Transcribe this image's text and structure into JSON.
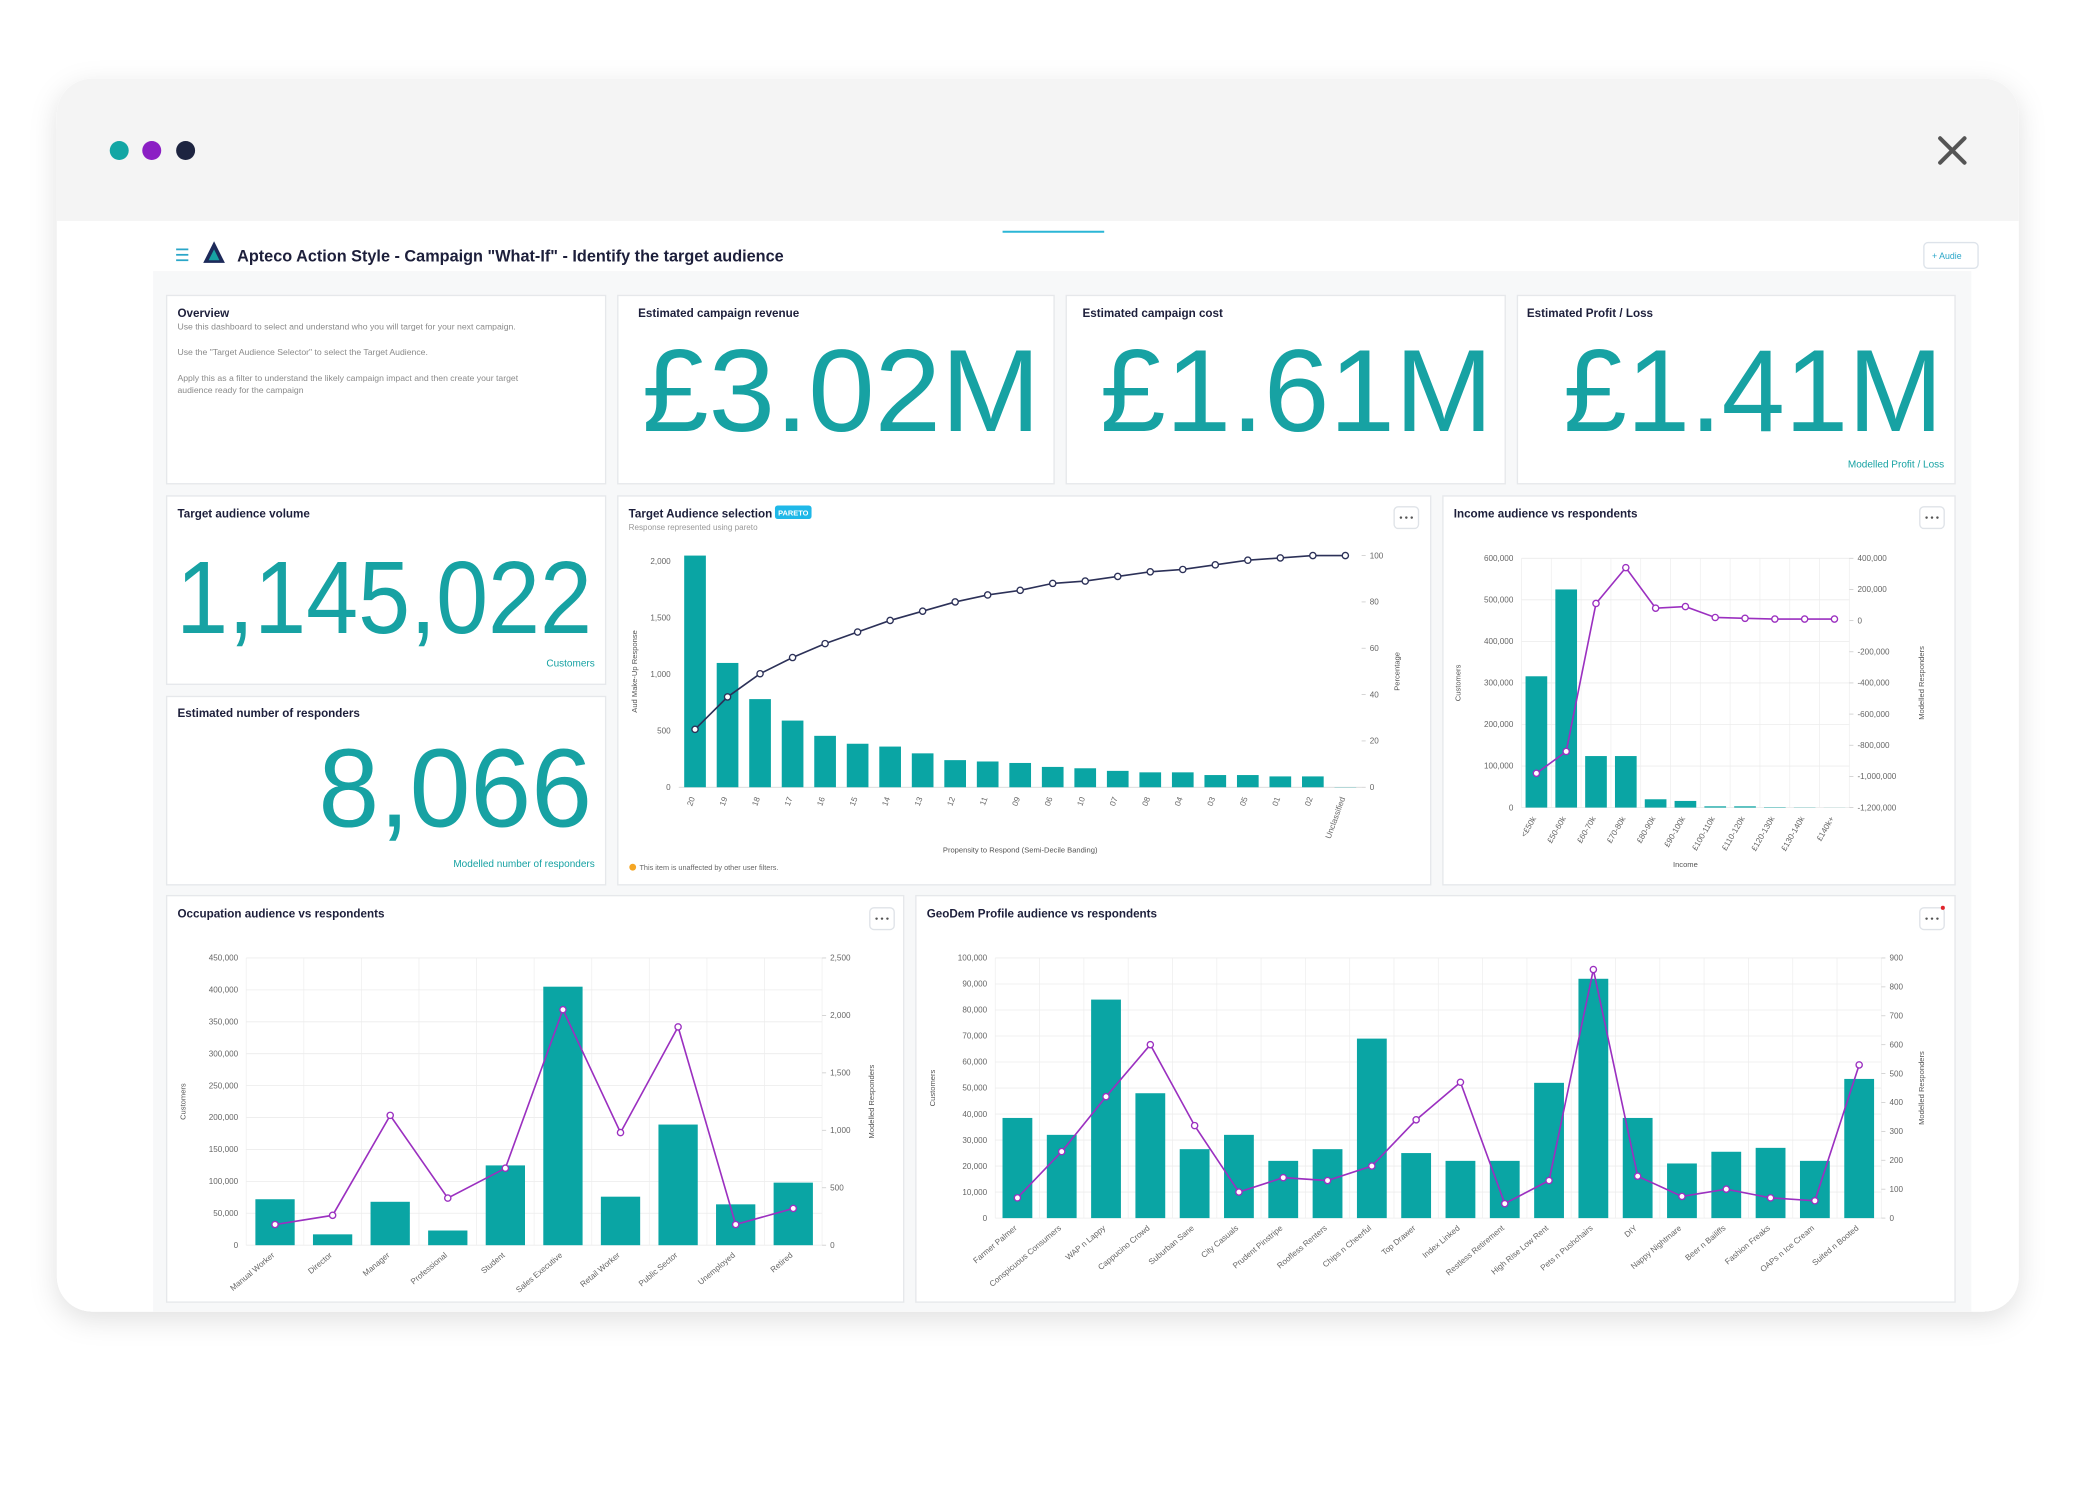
{
  "header": {
    "title": "Apteco Action Style - Campaign \"What-If\" - Identify the target audience",
    "button": "+ Audie"
  },
  "overview": {
    "title": "Overview",
    "lines": [
      "Use this dashboard to select and understand who you will target for your next campaign.",
      "Use the \"Target Audience Selector\" to select the Target Audience.",
      "Apply this as a filter to understand the likely campaign impact and then create your target",
      "audience ready for the campaign"
    ]
  },
  "kpis": [
    {
      "title": "Estimated campaign revenue",
      "value": "£3.02M"
    },
    {
      "title": "Estimated campaign cost",
      "value": "£1.61M"
    },
    {
      "title": "Estimated Profit / Loss",
      "value": "£1.41M",
      "caption": "Modelled Profit / Loss"
    },
    {
      "title": "Target audience volume",
      "value": "1,145,022",
      "caption": "Customers"
    },
    {
      "title": "Estimated number of responders",
      "value": "8,066",
      "caption": "Modelled number of responders"
    }
  ],
  "chart_data": [
    {
      "type": "combo",
      "title": "Target Audience selection",
      "badge": "PARETO",
      "subtitle": "Response represented using pareto",
      "note": "This item is unaffected by other user filters.",
      "categories": [
        "20",
        "19",
        "18",
        "17",
        "16",
        "15",
        "14",
        "13",
        "12",
        "11",
        "09",
        "06",
        "10",
        "07",
        "08",
        "04",
        "03",
        "05",
        "01",
        "02",
        "Unclassified"
      ],
      "series": [
        {
          "type": "bar",
          "color": "#0aa5a4",
          "values": [
            2050,
            1100,
            780,
            590,
            455,
            385,
            360,
            300,
            240,
            228,
            215,
            180,
            168,
            145,
            132,
            132,
            108,
            108,
            96,
            96,
            2
          ]
        },
        {
          "type": "line",
          "axis": "y2",
          "color": "#2c3158",
          "values": [
            25,
            39,
            49,
            56,
            62,
            67,
            72,
            76,
            80,
            83,
            85,
            88,
            89,
            91,
            93,
            94,
            96,
            98,
            99,
            100,
            100
          ]
        }
      ],
      "ylim": [
        0,
        2050
      ],
      "yticks": [
        0,
        500,
        {
          "value": 1000,
          "label": "1,000"
        },
        {
          "value": 1500,
          "label": "1,500"
        },
        {
          "value": 2000,
          "label": "2,000"
        }
      ],
      "y2lim": [
        0,
        100
      ],
      "y2ticks": [
        0,
        20,
        40,
        60,
        80,
        100
      ],
      "xlabel": "Propensity to Respond (Semi-Decile Banding)",
      "ylabel": "Aud Make-Up Response",
      "y2label": "Percentage",
      "grid": false
    },
    {
      "type": "combo",
      "title": "Income audience vs respondents",
      "categories": [
        "<£50k",
        "£50-60k",
        "£60-70k",
        "£70-80k",
        "£80-90k",
        "£90-100k",
        "£100-110k",
        "£110-120k",
        "£120-130k",
        "£130-140k",
        "£140k+"
      ],
      "series": [
        {
          "type": "bar",
          "color": "#0aa5a4",
          "values": [
            316000,
            525000,
            124000,
            124000,
            20000,
            16000,
            3000,
            3000,
            1000,
            500,
            200
          ]
        },
        {
          "type": "line",
          "axis": "y2",
          "color": "#9b30c0",
          "values": [
            -980000,
            -840000,
            110000,
            340000,
            80000,
            90000,
            20000,
            15000,
            10000,
            10000,
            10000
          ]
        }
      ],
      "ylim": [
        0,
        600000
      ],
      "yticks": [
        0,
        {
          "value": 100000,
          "label": "100,000"
        },
        {
          "value": 200000,
          "label": "200,000"
        },
        {
          "value": 300000,
          "label": "300,000"
        },
        {
          "value": 400000,
          "label": "400,000"
        },
        {
          "value": 500000,
          "label": "500,000"
        },
        {
          "value": 600000,
          "label": "600,000"
        }
      ],
      "y2lim": [
        -1200000,
        400000
      ],
      "y2ticks": [
        {
          "value": 400000,
          "label": "400,000"
        },
        {
          "value": 200000,
          "label": "200,000"
        },
        0,
        {
          "value": -200000,
          "label": "-200,000"
        },
        {
          "value": -400000,
          "label": "-400,000"
        },
        {
          "value": -600000,
          "label": "-600,000"
        },
        {
          "value": -800000,
          "label": "-800,000"
        },
        {
          "value": -1000000,
          "label": "-1,000,000"
        },
        {
          "value": -1200000,
          "label": "-1,200,000"
        }
      ],
      "xlabel": "Income",
      "ylabel": "Customers",
      "y2label": "Modelled Responders",
      "grid": true
    },
    {
      "type": "combo",
      "title": "Occupation audience vs respondents",
      "categories": [
        "Manual Worker",
        "Director",
        "Manager",
        "Professional",
        "Student",
        "Sales Executive",
        "Retail Worker",
        "Public Sector",
        "Unemployed",
        "Retired"
      ],
      "series": [
        {
          "type": "bar",
          "color": "#0aa5a4",
          "values": [
            72000,
            17000,
            68000,
            23000,
            125000,
            405000,
            76000,
            189000,
            64000,
            98000
          ]
        },
        {
          "type": "line",
          "axis": "y2",
          "color": "#9b30c0",
          "values": [
            180,
            260,
            1130,
            410,
            670,
            2050,
            980,
            1900,
            180,
            320
          ]
        }
      ],
      "ylim": [
        0,
        450000
      ],
      "yticks": [
        0,
        {
          "value": 50000,
          "label": "50,000"
        },
        {
          "value": 100000,
          "label": "100,000"
        },
        {
          "value": 150000,
          "label": "150,000"
        },
        {
          "value": 200000,
          "label": "200,000"
        },
        {
          "value": 250000,
          "label": "250,000"
        },
        {
          "value": 300000,
          "label": "300,000"
        },
        {
          "value": 350000,
          "label": "350,000"
        },
        {
          "value": 400000,
          "label": "400,000"
        },
        {
          "value": 450000,
          "label": "450,000"
        }
      ],
      "y2lim": [
        0,
        2500
      ],
      "y2ticks": [
        0,
        500,
        {
          "value": 1000,
          "label": "1,000"
        },
        {
          "value": 1500,
          "label": "1,500"
        },
        {
          "value": 2000,
          "label": "2,000"
        },
        {
          "value": 2500,
          "label": "2,500"
        }
      ],
      "ylabel": "Customers",
      "y2label": "Modelled Responders",
      "grid": true
    },
    {
      "type": "combo",
      "title": "GeoDem Profile audience vs respondents",
      "categories": [
        "Farmer Palmer",
        "Conspicuous Consumers",
        "WAP n Lappy",
        "Cappucino Crowd",
        "Suburban Sane",
        "City Casuals",
        "Prudent Pinstripe",
        "Roofless Renters",
        "Chips n Cheerful",
        "Top Drawer",
        "Index Linked",
        "Restless Retirement",
        "High Rise Low Rent",
        "Pets n Pushchairs",
        "DIY",
        "Nappy Nightmare",
        "Beer n Bailiffs",
        "Fashion Freaks",
        "OAPs n Ice Cream",
        "Suited n Booted"
      ],
      "series": [
        {
          "type": "bar",
          "color": "#0aa5a4",
          "values": [
            38500,
            32000,
            84000,
            48000,
            26500,
            32000,
            22000,
            26500,
            69000,
            25000,
            22000,
            22000,
            52000,
            92000,
            38500,
            21000,
            25500,
            27000,
            22000,
            53500
          ]
        },
        {
          "type": "line",
          "axis": "y2",
          "color": "#9b30c0",
          "values": [
            70,
            230,
            420,
            600,
            320,
            90,
            140,
            130,
            180,
            340,
            470,
            50,
            130,
            860,
            145,
            75,
            100,
            70,
            60,
            530
          ]
        }
      ],
      "ylim": [
        0,
        100000
      ],
      "yticks": [
        0,
        {
          "value": 10000,
          "label": "10,000"
        },
        {
          "value": 20000,
          "label": "20,000"
        },
        {
          "value": 30000,
          "label": "30,000"
        },
        {
          "value": 40000,
          "label": "40,000"
        },
        {
          "value": 50000,
          "label": "50,000"
        },
        {
          "value": 60000,
          "label": "60,000"
        },
        {
          "value": 70000,
          "label": "70,000"
        },
        {
          "value": 80000,
          "label": "80,000"
        },
        {
          "value": 90000,
          "label": "90,000"
        },
        {
          "value": 100000,
          "label": "100,000"
        }
      ],
      "y2lim": [
        0,
        900
      ],
      "y2ticks": [
        0,
        100,
        200,
        300,
        400,
        500,
        600,
        700,
        800,
        900
      ],
      "ylabel": "Customers",
      "y2label": "Modelled Responders",
      "grid": true
    }
  ]
}
